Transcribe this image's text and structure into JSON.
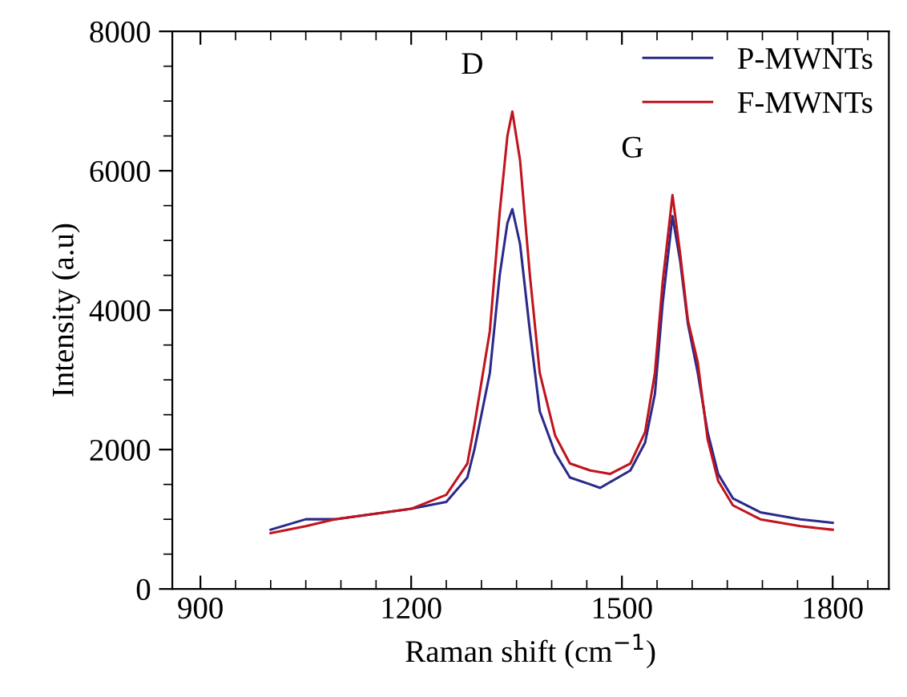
{
  "chart_data": {
    "type": "line",
    "xlabel": "Raman shift (cm$^{−1}$)",
    "ylabel": "Intensity (a.u)",
    "xlim": [
      860,
      1880
    ],
    "xticks": [
      900,
      1200,
      1500,
      1800
    ],
    "ylim": [
      0,
      8000
    ],
    "yticks": [
      0,
      2000,
      4000,
      6000,
      8000
    ],
    "legend": "top right",
    "grid": false,
    "marker": "none",
    "line_style": "solid",
    "annotations": [
      {
        "text": "D",
        "x": 1344,
        "y": 6850
      },
      {
        "text": "G",
        "x": 1572,
        "y": 5650
      }
    ],
    "series": [
      {
        "name": "P-MWNTs",
        "color": "#2a2a8a",
        "x": [
          1000,
          1050,
          1091,
          1200,
          1250,
          1280,
          1290,
          1312,
          1326,
          1337,
          1344,
          1355,
          1369,
          1383,
          1405,
          1426,
          1455,
          1469,
          1512,
          1533,
          1547,
          1558,
          1572,
          1583,
          1594,
          1608,
          1622,
          1637,
          1658,
          1697,
          1754,
          1800
        ],
        "values": [
          850,
          1000,
          1000,
          1150,
          1250,
          1600,
          2000,
          3100,
          4500,
          5250,
          5450,
          4950,
          3700,
          2550,
          1950,
          1600,
          1500,
          1450,
          1700,
          2100,
          2800,
          4100,
          5350,
          4700,
          3800,
          3100,
          2250,
          1650,
          1300,
          1100,
          1000,
          950
        ]
      },
      {
        "name": "F-MWNTs",
        "color": "#c0141e",
        "x": [
          1000,
          1050,
          1091,
          1200,
          1250,
          1280,
          1290,
          1312,
          1326,
          1337,
          1344,
          1355,
          1369,
          1383,
          1405,
          1426,
          1455,
          1483,
          1512,
          1533,
          1547,
          1558,
          1572,
          1583,
          1594,
          1608,
          1622,
          1637,
          1658,
          1697,
          1754,
          1800
        ],
        "values": [
          800,
          900,
          1000,
          1150,
          1350,
          1800,
          2350,
          3700,
          5400,
          6500,
          6850,
          6150,
          4500,
          3100,
          2200,
          1800,
          1700,
          1650,
          1800,
          2250,
          3100,
          4400,
          5650,
          4800,
          3850,
          3250,
          2150,
          1550,
          1200,
          1000,
          900,
          850
        ]
      }
    ]
  }
}
